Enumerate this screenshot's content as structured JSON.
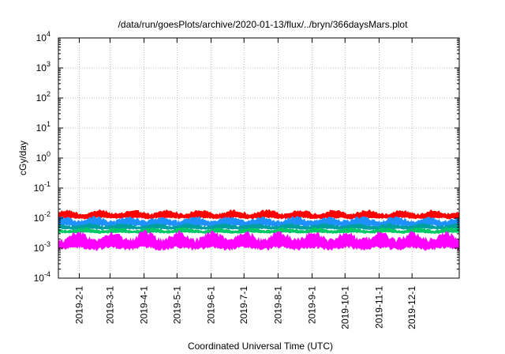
{
  "chart_data": {
    "type": "area",
    "title": "/data/run/goesPlots/archive/2020-01-13/flux/../bryn/366daysMars.plot",
    "xlabel": "Coordinated Universal Time (UTC)",
    "ylabel": "cGy/day",
    "y_scale": "log",
    "ylim": [
      0.0001,
      10000
    ],
    "xlim": [
      "2019-01-13",
      "2020-01-13"
    ],
    "grid": true,
    "legend": "none",
    "y_ticks": [
      {
        "base": "10",
        "exp": "-4",
        "value": 0.0001
      },
      {
        "base": "10",
        "exp": "-3",
        "value": 0.001
      },
      {
        "base": "10",
        "exp": "-2",
        "value": 0.01
      },
      {
        "base": "10",
        "exp": "-1",
        "value": 0.1
      },
      {
        "base": "10",
        "exp": "0",
        "value": 1
      },
      {
        "base": "10",
        "exp": "1",
        "value": 10
      },
      {
        "base": "10",
        "exp": "2",
        "value": 100
      },
      {
        "base": "10",
        "exp": "3",
        "value": 1000
      },
      {
        "base": "10",
        "exp": "4",
        "value": 10000
      }
    ],
    "x_ticks": [
      "2019-2-1",
      "2019-3-1",
      "2019-4-1",
      "2019-5-1",
      "2019-6-1",
      "2019-7-1",
      "2019-8-1",
      "2019-9-1",
      "2019-10-1",
      "2019-11-1",
      "2019-12-1"
    ],
    "x_tick_dates": [
      "2019-02-01",
      "2019-03-01",
      "2019-04-01",
      "2019-05-01",
      "2019-06-01",
      "2019-07-01",
      "2019-08-01",
      "2019-09-01",
      "2019-10-01",
      "2019-11-01",
      "2019-12-01"
    ],
    "series": [
      {
        "color": "#ff0000",
        "range": [
          0.009,
          0.02
        ]
      },
      {
        "color": "#1e90ff",
        "range": [
          0.005,
          0.012
        ]
      },
      {
        "color": "#00a0a0",
        "range": [
          0.004,
          0.007
        ]
      },
      {
        "color": "#00c864",
        "range": [
          0.003,
          0.005
        ]
      },
      {
        "color": "#ff00ff",
        "range": [
          0.0008,
          0.004
        ]
      }
    ]
  }
}
